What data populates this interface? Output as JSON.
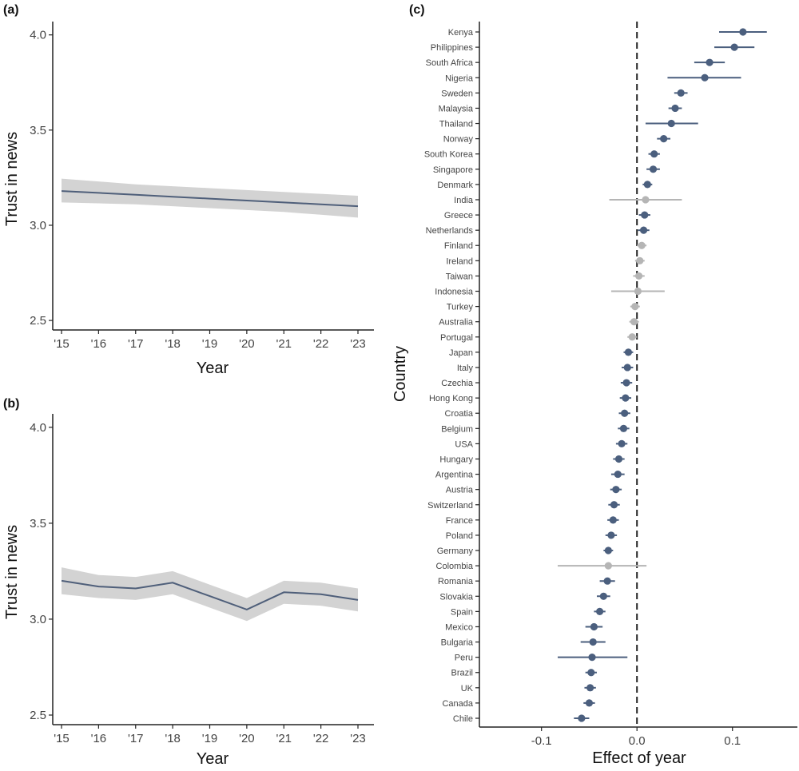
{
  "colors": {
    "line": "#4f5f7a",
    "ribbon": "#d3d3d3",
    "significant": "#4b5f7e",
    "nonsignificant": "#b5b5b5",
    "axis": "#222222"
  },
  "chart_data": [
    {
      "panel": "(a)",
      "type": "line",
      "x": [
        "'15",
        "'16",
        "'17",
        "'18",
        "'19",
        "'20",
        "'21",
        "'22",
        "'23"
      ],
      "series": [
        {
          "name": "Trust in news",
          "values": [
            3.18,
            3.17,
            3.16,
            3.15,
            3.14,
            3.13,
            3.12,
            3.11,
            3.1
          ],
          "lower": [
            3.12,
            3.115,
            3.11,
            3.1,
            3.09,
            3.08,
            3.07,
            3.055,
            3.04
          ],
          "upper": [
            3.245,
            3.23,
            3.215,
            3.205,
            3.195,
            3.185,
            3.175,
            3.165,
            3.155
          ]
        }
      ],
      "xlabel": "Year",
      "ylabel": "Trust in news",
      "ylim": [
        2.45,
        4.07
      ],
      "yticks": [
        "2.5",
        "3.0",
        "3.5",
        "4.0"
      ]
    },
    {
      "panel": "(b)",
      "type": "line",
      "x": [
        "'15",
        "'16",
        "'17",
        "'18",
        "'19",
        "'20",
        "'21",
        "'22",
        "'23"
      ],
      "series": [
        {
          "name": "Trust in news",
          "values": [
            3.2,
            3.17,
            3.16,
            3.19,
            3.12,
            3.05,
            3.14,
            3.13,
            3.1
          ],
          "lower": [
            3.13,
            3.11,
            3.1,
            3.13,
            3.06,
            2.99,
            3.08,
            3.07,
            3.04
          ],
          "upper": [
            3.27,
            3.23,
            3.22,
            3.25,
            3.18,
            3.11,
            3.2,
            3.19,
            3.16
          ]
        }
      ],
      "xlabel": "Year",
      "ylabel": "Trust in news",
      "ylim": [
        2.45,
        4.07
      ],
      "yticks": [
        "2.5",
        "3.0",
        "3.5",
        "4.0"
      ]
    },
    {
      "panel": "(c)",
      "type": "scatter",
      "xlabel": "Effect of year",
      "ylabel": "Country",
      "xlim": [
        -0.165,
        0.168
      ],
      "xticks": [
        "-0.1",
        "0.0",
        "0.1"
      ],
      "reference_line": 0,
      "categories": [
        "Kenya",
        "Philippines",
        "South Africa",
        "Nigeria",
        "Sweden",
        "Malaysia",
        "Thailand",
        "Norway",
        "South Korea",
        "Singapore",
        "Denmark",
        "India",
        "Greece",
        "Netherlands",
        "Finland",
        "Ireland",
        "Taiwan",
        "Indonesia",
        "Turkey",
        "Australia",
        "Portugal",
        "Japan",
        "Italy",
        "Czechia",
        "Hong Kong",
        "Croatia",
        "Belgium",
        "USA",
        "Hungary",
        "Argentina",
        "Austria",
        "Switzerland",
        "France",
        "Poland",
        "Germany",
        "Colombia",
        "Romania",
        "Slovakia",
        "Spain",
        "Mexico",
        "Bulgaria",
        "Peru",
        "Brazil",
        "UK",
        "Canada",
        "Chile"
      ],
      "estimates": [
        0.111,
        0.102,
        0.076,
        0.071,
        0.046,
        0.04,
        0.036,
        0.028,
        0.018,
        0.017,
        0.011,
        0.009,
        0.008,
        0.007,
        0.005,
        0.003,
        0.002,
        0.001,
        -0.002,
        -0.003,
        -0.005,
        -0.009,
        -0.01,
        -0.011,
        -0.012,
        -0.013,
        -0.014,
        -0.016,
        -0.019,
        -0.02,
        -0.022,
        -0.024,
        -0.025,
        -0.027,
        -0.03,
        -0.03,
        -0.031,
        -0.035,
        -0.039,
        -0.045,
        -0.046,
        -0.047,
        -0.048,
        -0.049,
        -0.05,
        -0.058
      ],
      "ci_lower": [
        0.086,
        0.081,
        0.06,
        0.032,
        0.039,
        0.033,
        0.009,
        0.021,
        0.012,
        0.01,
        0.006,
        -0.029,
        0.002,
        0.001,
        0.0,
        -0.002,
        -0.004,
        -0.027,
        -0.007,
        -0.008,
        -0.01,
        -0.014,
        -0.016,
        -0.017,
        -0.018,
        -0.019,
        -0.02,
        -0.022,
        -0.025,
        -0.027,
        -0.028,
        -0.03,
        -0.031,
        -0.033,
        -0.035,
        -0.083,
        -0.039,
        -0.042,
        -0.045,
        -0.054,
        -0.059,
        -0.083,
        -0.054,
        -0.055,
        -0.056,
        -0.066
      ],
      "ci_upper": [
        0.136,
        0.123,
        0.092,
        0.109,
        0.053,
        0.047,
        0.064,
        0.035,
        0.024,
        0.024,
        0.016,
        0.047,
        0.014,
        0.013,
        0.01,
        0.008,
        0.008,
        0.029,
        0.003,
        0.002,
        0.0,
        -0.004,
        -0.004,
        -0.005,
        -0.006,
        -0.007,
        -0.008,
        -0.01,
        -0.013,
        -0.013,
        -0.016,
        -0.018,
        -0.019,
        -0.021,
        -0.025,
        0.01,
        -0.023,
        -0.028,
        -0.033,
        -0.036,
        -0.033,
        -0.01,
        -0.042,
        -0.043,
        -0.044,
        -0.05
      ],
      "significant": [
        true,
        true,
        true,
        true,
        true,
        true,
        true,
        true,
        true,
        true,
        true,
        false,
        true,
        true,
        false,
        false,
        false,
        false,
        false,
        false,
        false,
        true,
        true,
        true,
        true,
        true,
        true,
        true,
        true,
        true,
        true,
        true,
        true,
        true,
        true,
        false,
        true,
        true,
        true,
        true,
        true,
        true,
        true,
        true,
        true,
        true
      ]
    }
  ]
}
